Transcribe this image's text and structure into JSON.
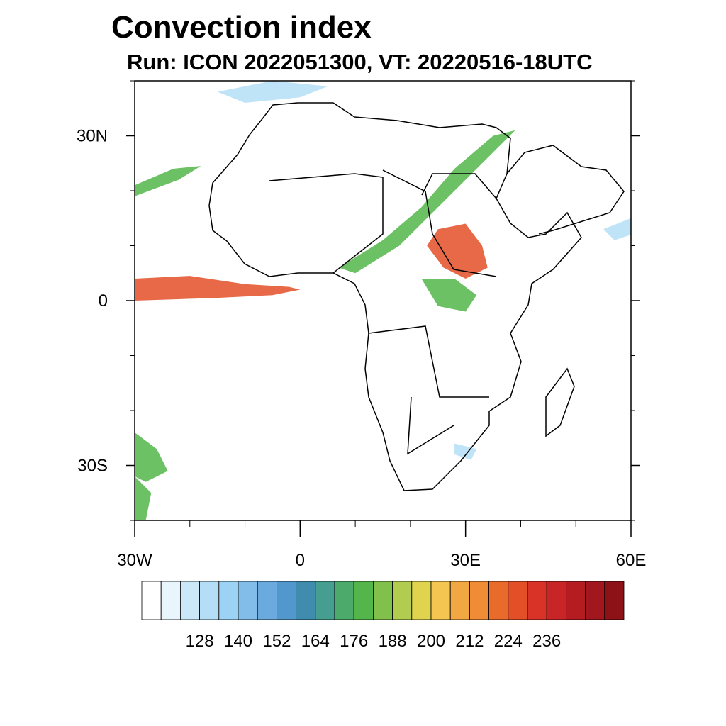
{
  "title": "Convection index",
  "subtitle": "Run: ICON 2022051300,  VT: 20220516-18UTC",
  "map": {
    "lon_range": [
      -30,
      60
    ],
    "lat_range": [
      -40,
      40
    ],
    "lat_ticks": [
      {
        "value": 30,
        "label": "30N"
      },
      {
        "value": 0,
        "label": "0"
      },
      {
        "value": -30,
        "label": "30S"
      }
    ],
    "lon_ticks": [
      {
        "value": -30,
        "label": "30W"
      },
      {
        "value": 0,
        "label": "0"
      },
      {
        "value": 30,
        "label": "30E"
      },
      {
        "value": 60,
        "label": "60E"
      }
    ],
    "features": [
      {
        "name": "atlantic-itcz-band",
        "level": "high",
        "points": [
          [
            -30,
            4
          ],
          [
            -20,
            4.5
          ],
          [
            -10,
            3
          ],
          [
            -2,
            2.5
          ],
          [
            0,
            2
          ],
          [
            -5,
            1
          ],
          [
            -15,
            0.5
          ],
          [
            -30,
            0
          ]
        ]
      },
      {
        "name": "central-africa-convection",
        "level": "high",
        "points": [
          [
            25,
            13
          ],
          [
            30,
            14
          ],
          [
            33,
            10
          ],
          [
            34,
            6
          ],
          [
            30,
            4
          ],
          [
            26,
            6
          ],
          [
            23,
            10
          ]
        ]
      },
      {
        "name": "sahel-to-egypt-band",
        "level": "medium",
        "points": [
          [
            7,
            6
          ],
          [
            15,
            11
          ],
          [
            22,
            17
          ],
          [
            28,
            24
          ],
          [
            35,
            30
          ],
          [
            39,
            31
          ],
          [
            35,
            27
          ],
          [
            26,
            18
          ],
          [
            18,
            10
          ],
          [
            10,
            5
          ]
        ]
      },
      {
        "name": "lake-victoria-area",
        "level": "medium",
        "points": [
          [
            22,
            4
          ],
          [
            28,
            4
          ],
          [
            32,
            1
          ],
          [
            30,
            -2
          ],
          [
            25,
            -1
          ]
        ]
      },
      {
        "name": "north-atlantic-band",
        "level": "medium",
        "points": [
          [
            -30,
            21
          ],
          [
            -23,
            24
          ],
          [
            -18,
            24.5
          ],
          [
            -22,
            22
          ],
          [
            -30,
            19
          ]
        ]
      },
      {
        "name": "south-atlantic-sw-patch",
        "level": "medium",
        "points": [
          [
            -30,
            -24
          ],
          [
            -26,
            -27
          ],
          [
            -24,
            -31
          ],
          [
            -28,
            -33
          ],
          [
            -30,
            -32
          ]
        ]
      },
      {
        "name": "far-south-west-patch",
        "level": "medium",
        "points": [
          [
            -30,
            -32
          ],
          [
            -27,
            -35
          ],
          [
            -28,
            -40
          ],
          [
            -30,
            -40
          ]
        ]
      },
      {
        "name": "mediterranean-patch",
        "level": "low",
        "points": [
          [
            -15,
            38
          ],
          [
            -5,
            40
          ],
          [
            5,
            39
          ],
          [
            0,
            37
          ],
          [
            -10,
            36
          ]
        ]
      },
      {
        "name": "arabian-sea-patch",
        "level": "low",
        "points": [
          [
            55,
            13
          ],
          [
            60,
            15
          ],
          [
            60,
            12
          ],
          [
            57,
            11
          ]
        ]
      },
      {
        "name": "south-africa-patch",
        "level": "low",
        "points": [
          [
            28,
            -26
          ],
          [
            32,
            -27
          ],
          [
            31,
            -29
          ],
          [
            28,
            -28
          ]
        ]
      }
    ]
  },
  "colorbar": {
    "colors": [
      "#ffffff",
      "#e9f5fd",
      "#cbe8f8",
      "#b4def6",
      "#9cd3f4",
      "#82bde9",
      "#6aaade",
      "#5297cd",
      "#3f8caf",
      "#459e90",
      "#4caa6a",
      "#54b64a",
      "#82c04c",
      "#b1cc4e",
      "#e0d44f",
      "#f5c551",
      "#f2a842",
      "#ef8c35",
      "#e96b2c",
      "#e34f27",
      "#d93227",
      "#c82528",
      "#b51c22",
      "#a1171d",
      "#8c1217"
    ],
    "tick_labels": [
      "128",
      "140",
      "152",
      "164",
      "176",
      "188",
      "200",
      "212",
      "224",
      "236"
    ]
  },
  "level_colors": {
    "low": "#b4def6",
    "medium": "#54b64a",
    "high": "#e34f27"
  }
}
